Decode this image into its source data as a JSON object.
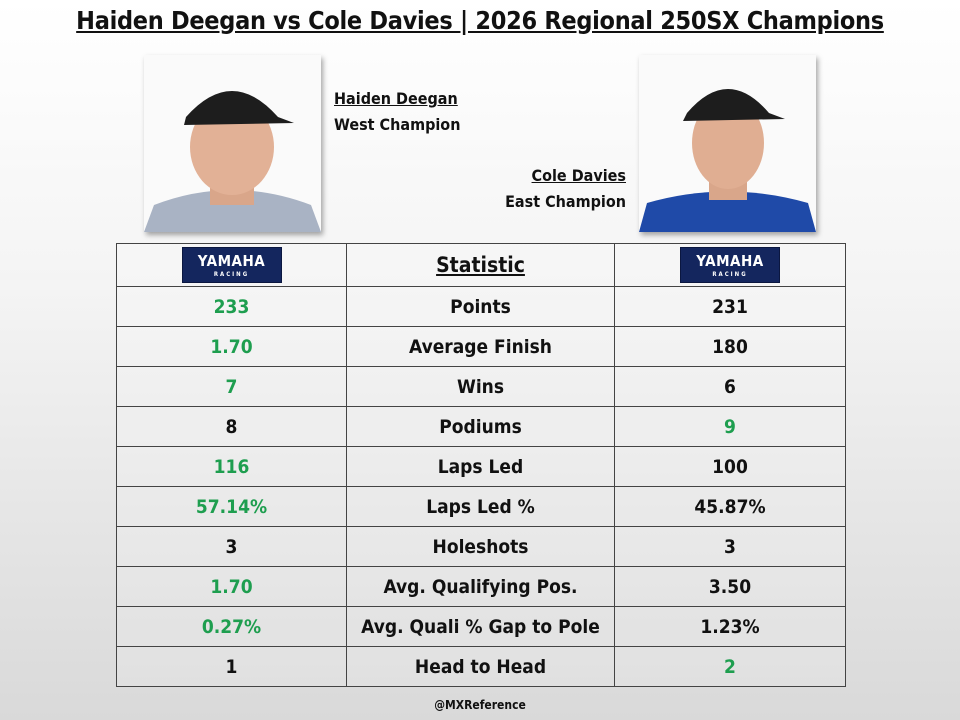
{
  "title": "Haiden Deegan vs Cole Davies | 2026 Regional 250SX Champions",
  "riders": [
    {
      "name": "Haiden Deegan",
      "subtitle": "West Champion"
    },
    {
      "name": "Cole Davies",
      "subtitle": "East Champion"
    }
  ],
  "logo": {
    "brand": "YAMAHA",
    "sub": "RACING"
  },
  "table": {
    "header": "Statistic",
    "highlight_color": "#1e9e4f",
    "rows": [
      {
        "left": "233",
        "label": "Points",
        "right": "231",
        "highlight": "left"
      },
      {
        "left": "1.70",
        "label": "Average Finish",
        "right": "180",
        "highlight": "left"
      },
      {
        "left": "7",
        "label": "Wins",
        "right": "6",
        "highlight": "left"
      },
      {
        "left": "8",
        "label": "Podiums",
        "right": "9",
        "highlight": "right"
      },
      {
        "left": "116",
        "label": "Laps Led",
        "right": "100",
        "highlight": "left"
      },
      {
        "left": "57.14%",
        "label": "Laps Led %",
        "right": "45.87%",
        "highlight": "left"
      },
      {
        "left": "3",
        "label": "Holeshots",
        "right": "3",
        "highlight": null
      },
      {
        "left": "1.70",
        "label": "Avg. Qualifying Pos.",
        "right": "3.50",
        "highlight": "left"
      },
      {
        "left": "0.27%",
        "label": "Avg. Quali % Gap to Pole",
        "right": "1.23%",
        "highlight": "left"
      },
      {
        "left": "1",
        "label": "Head to Head",
        "right": "2",
        "highlight": "right"
      }
    ]
  },
  "footer": "@MXReference"
}
